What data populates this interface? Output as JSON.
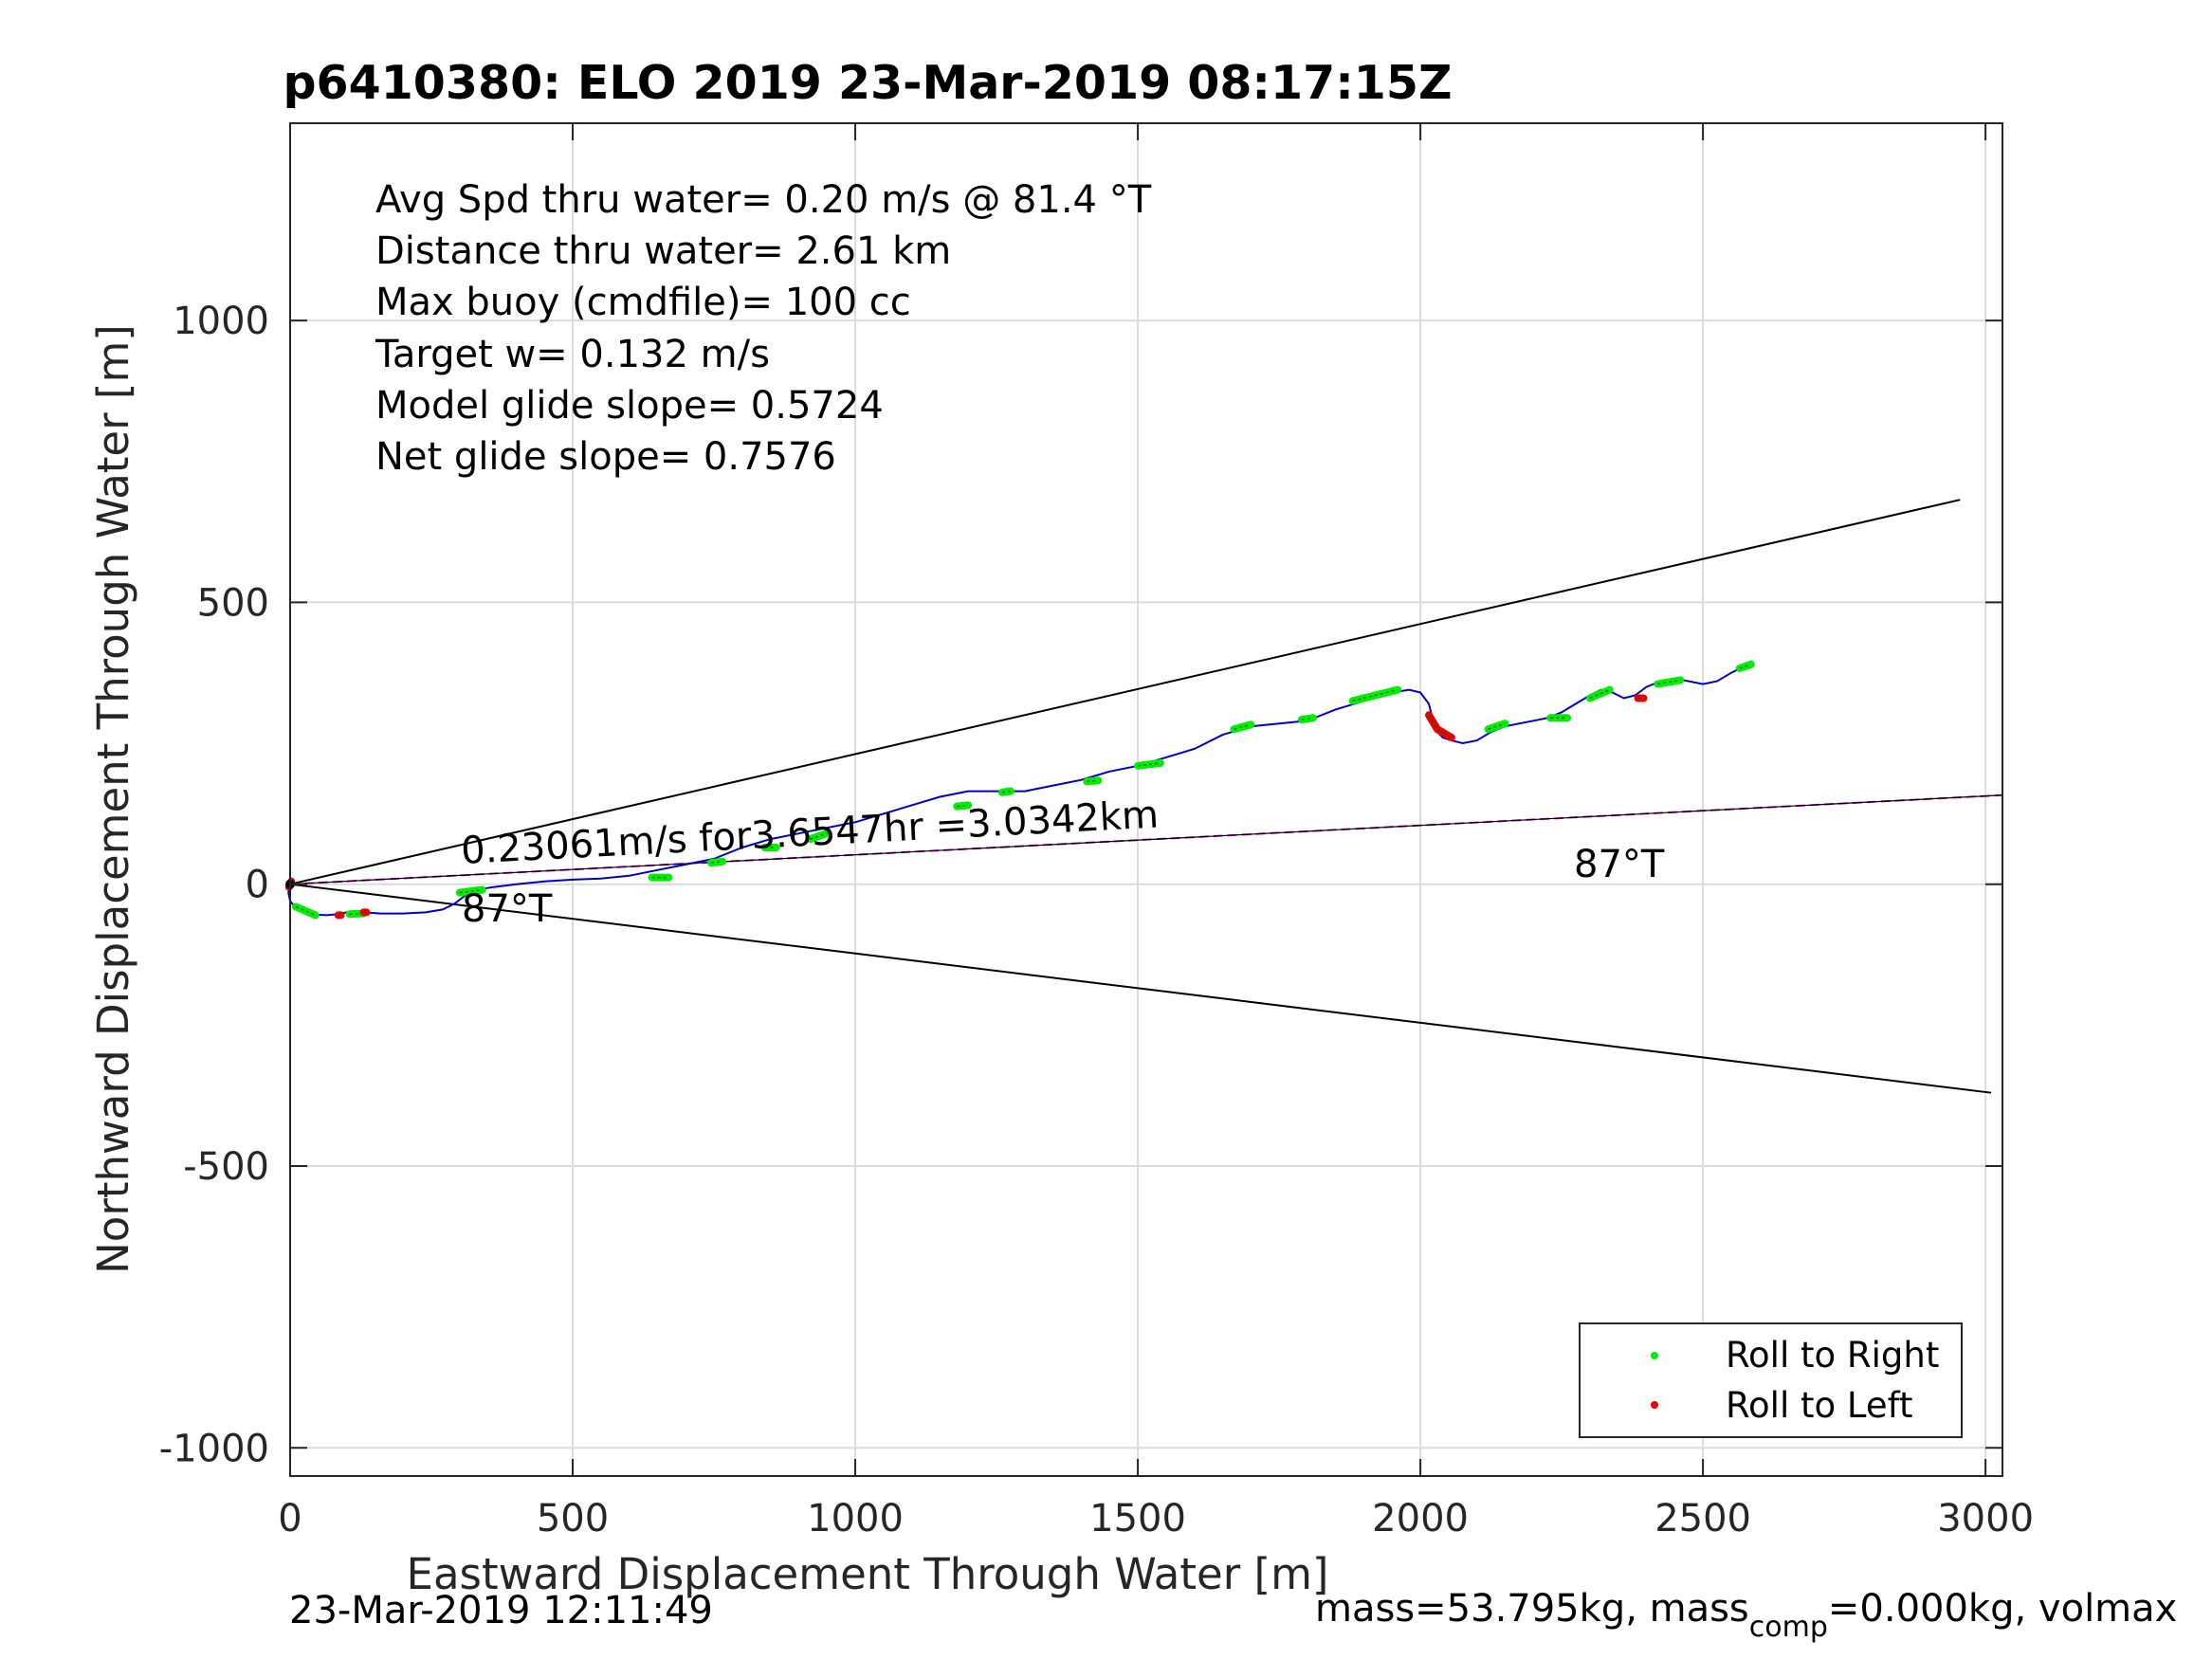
{
  "chart_data": {
    "type": "line",
    "title": "p6410380: ELO 2019 23-Mar-2019 08:17:15Z",
    "xlabel": "Eastward Displacement Through Water [m]",
    "ylabel": "Northward Displacement Through Water [m]",
    "xlim": [
      0,
      3030
    ],
    "ylim": [
      -1050,
      1350
    ],
    "xticks": [
      0,
      500,
      1000,
      1500,
      2000,
      2500,
      3000
    ],
    "yticks": [
      1000,
      500,
      0,
      -500,
      -1000
    ],
    "xtick_labels": [
      "0",
      "500",
      "1000",
      "1500",
      "2000",
      "2500",
      "3000"
    ],
    "ytick_labels": [
      "1000",
      "500",
      "0",
      "-500",
      "-1000"
    ],
    "grid": true,
    "legend_position": "bottom-right",
    "info_lines": [
      "Avg Spd thru water=  0.20 m/s @  81.4 °T",
      "Distance thru water=  2.61 km",
      "Max buoy (cmdfile)= 100 cc",
      "Target w= 0.132 m/s",
      "Model glide slope= 0.5724",
      "Net glide slope= 0.7576"
    ],
    "annotations": {
      "speed_text": "0.23061m/s for3.6547hr =3.0342km",
      "heading_near": "87°T",
      "heading_far": "87°T"
    },
    "legend": [
      {
        "label": "Roll to Right",
        "color": "#00ee00"
      },
      {
        "label": "Roll to Left",
        "color": "#ee0000"
      }
    ],
    "footer": {
      "timestamp": "23-Mar-2019 12:11:49",
      "mass_prefix": "mass=53.795kg, mass",
      "mass_sub": "comp",
      "mass_suffix": "=0.000kg, volmax"
    },
    "cone_lines": [
      {
        "name": "upper",
        "x": [
          0,
          2955
        ],
        "y": [
          0,
          682
        ],
        "color": "#000000"
      },
      {
        "name": "lower",
        "x": [
          0,
          3010
        ],
        "y": [
          0,
          -370
        ],
        "color": "#000000"
      },
      {
        "name": "heading",
        "x": [
          0,
          3030
        ],
        "y": [
          0,
          158
        ],
        "color": "#cc00cc"
      }
    ],
    "track": {
      "color": "#0000cc",
      "x": [
        0,
        -3,
        0,
        10,
        25,
        45,
        65,
        85,
        100,
        115,
        130,
        160,
        200,
        240,
        270,
        290,
        310,
        330,
        360,
        400,
        450,
        500,
        550,
        600,
        650,
        700,
        750,
        800,
        850,
        900,
        950,
        1000,
        1050,
        1100,
        1150,
        1200,
        1250,
        1300,
        1350,
        1400,
        1450,
        1500,
        1550,
        1600,
        1650,
        1700,
        1750,
        1800,
        1850,
        1900,
        1950,
        1980,
        2000,
        2015,
        2020,
        2025,
        2030,
        2040,
        2055,
        2075,
        2100,
        2125,
        2150,
        2175,
        2200,
        2225,
        2250,
        2275,
        2300,
        2320,
        2340,
        2360,
        2380,
        2400,
        2425,
        2450,
        2475,
        2500,
        2525,
        2550,
        2570,
        2585
      ],
      "y": [
        0,
        -15,
        -30,
        -42,
        -50,
        -54,
        -55,
        -53,
        -50,
        -52,
        -50,
        -52,
        -52,
        -50,
        -45,
        -35,
        -20,
        -10,
        -5,
        0,
        5,
        8,
        10,
        15,
        25,
        35,
        45,
        65,
        80,
        90,
        100,
        110,
        125,
        140,
        155,
        165,
        165,
        165,
        175,
        185,
        200,
        210,
        225,
        240,
        265,
        280,
        285,
        290,
        310,
        325,
        340,
        345,
        340,
        320,
        300,
        285,
        270,
        260,
        255,
        250,
        255,
        270,
        280,
        285,
        290,
        295,
        305,
        320,
        335,
        345,
        340,
        330,
        335,
        350,
        360,
        365,
        360,
        355,
        360,
        375,
        385,
        390
      ]
    },
    "roll_right_segments": [
      [
        [
          10,
          -40
        ],
        [
          45,
          -55
        ]
      ],
      [
        [
          105,
          -53
        ],
        [
          130,
          -52
        ]
      ],
      [
        [
          300,
          -15
        ],
        [
          340,
          -10
        ]
      ],
      [
        [
          640,
          12
        ],
        [
          670,
          12
        ]
      ],
      [
        [
          745,
          38
        ],
        [
          765,
          40
        ]
      ],
      [
        [
          840,
          65
        ],
        [
          860,
          65
        ]
      ],
      [
        [
          920,
          80
        ],
        [
          950,
          90
        ]
      ],
      [
        [
          1180,
          138
        ],
        [
          1200,
          140
        ]
      ],
      [
        [
          1260,
          163
        ],
        [
          1275,
          165
        ]
      ],
      [
        [
          1410,
          182
        ],
        [
          1430,
          184
        ]
      ],
      [
        [
          1500,
          210
        ],
        [
          1540,
          215
        ]
      ],
      [
        [
          1670,
          275
        ],
        [
          1700,
          283
        ]
      ],
      [
        [
          1790,
          292
        ],
        [
          1810,
          295
        ]
      ],
      [
        [
          1880,
          325
        ],
        [
          1960,
          345
        ]
      ],
      [
        [
          2120,
          275
        ],
        [
          2150,
          285
        ]
      ],
      [
        [
          2230,
          295
        ],
        [
          2260,
          295
        ]
      ],
      [
        [
          2300,
          330
        ],
        [
          2335,
          345
        ]
      ],
      [
        [
          2420,
          355
        ],
        [
          2460,
          362
        ]
      ],
      [
        [
          2565,
          383
        ],
        [
          2585,
          390
        ]
      ]
    ],
    "roll_left_segments": [
      [
        [
          -2,
          -5
        ],
        [
          2,
          5
        ]
      ],
      [
        [
          85,
          -55
        ],
        [
          90,
          -55
        ]
      ],
      [
        [
          130,
          -50
        ],
        [
          135,
          -50
        ]
      ],
      [
        [
          2015,
          300
        ],
        [
          2030,
          275
        ],
        [
          2055,
          260
        ]
      ],
      [
        [
          2385,
          330
        ],
        [
          2395,
          330
        ]
      ]
    ]
  }
}
